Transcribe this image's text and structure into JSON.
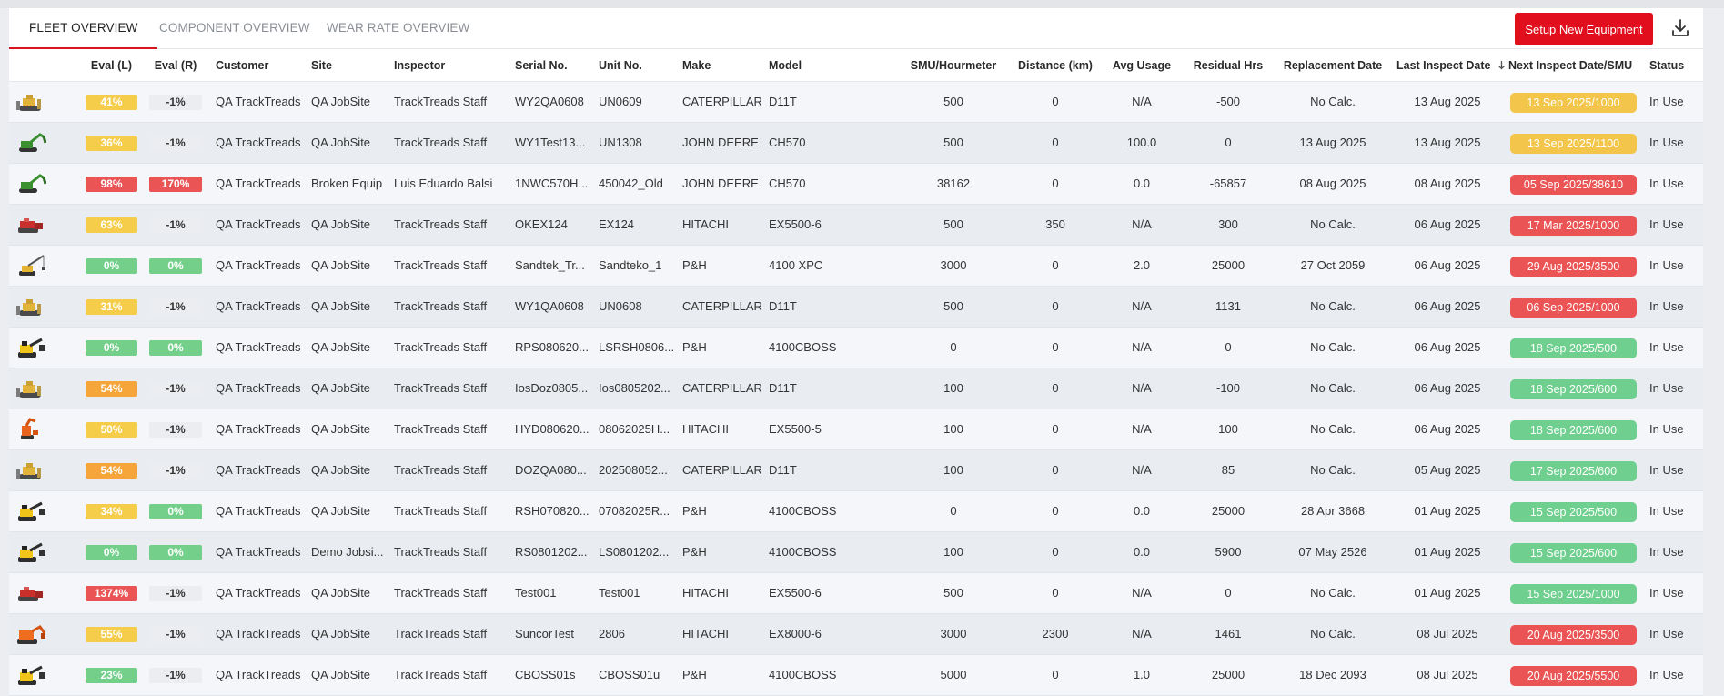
{
  "tabs": [
    {
      "label": "FLEET OVERVIEW"
    },
    {
      "label": "COMPONENT OVERVIEW"
    },
    {
      "label": "WEAR RATE OVERVIEW"
    }
  ],
  "setup_button": "Setup New Equipment",
  "columns": {
    "eval_l": "Eval (L)",
    "eval_r": "Eval (R)",
    "customer": "Customer",
    "site": "Site",
    "inspector": "Inspector",
    "serial": "Serial No.",
    "unit": "Unit No.",
    "make": "Make",
    "model": "Model",
    "smu": "SMU/Hourmeter",
    "distance": "Distance (km)",
    "avg": "Avg Usage",
    "residual": "Residual Hrs",
    "replacement": "Replacement Date",
    "last": "Last Inspect Date",
    "next": "Next Inspect Date/SMU",
    "status": "Status"
  },
  "colors": {
    "accent": "#e10f1d",
    "yellow": "#f5cd4a",
    "orange": "#f5a53a",
    "red": "#ea5455",
    "green": "#74cf8b"
  },
  "rows": [
    {
      "icon": "dozer-icon",
      "eval_l": "41%",
      "eval_l_color": "yellow",
      "eval_r": "-1%",
      "eval_r_color": "neutral",
      "customer": "QA TrackTreads",
      "site": "QA JobSite",
      "inspector": "TrackTreads Staff",
      "serial": "WY2QA0608",
      "unit": "UN0609",
      "make": "CATERPILLAR",
      "model": "D11T",
      "smu": "500",
      "distance": "0",
      "avg": "N/A",
      "residual": "-500",
      "replacement": "No Calc.",
      "last": "13 Aug 2025",
      "next": "13 Sep 2025/1000",
      "next_color": "yellow",
      "status": "In Use"
    },
    {
      "icon": "green-excavator-icon",
      "eval_l": "36%",
      "eval_l_color": "yellow",
      "eval_r": "-1%",
      "eval_r_color": "neutral",
      "customer": "QA TrackTreads",
      "site": "QA JobSite",
      "inspector": "TrackTreads Staff",
      "serial": "WY1Test13...",
      "unit": "UN1308",
      "make": "JOHN DEERE",
      "model": "CH570",
      "smu": "500",
      "distance": "0",
      "avg": "100.0",
      "residual": "0",
      "replacement": "13 Aug 2025",
      "last": "13 Aug 2025",
      "next": "13 Sep 2025/1100",
      "next_color": "yellow",
      "status": "In Use"
    },
    {
      "icon": "green-excavator-icon",
      "eval_l": "98%",
      "eval_l_color": "red",
      "eval_r": "170%",
      "eval_r_color": "red",
      "customer": "QA TrackTreads",
      "site": "Broken Equip",
      "inspector": "Luis Eduardo Balsi",
      "serial": "1NWC570H...",
      "unit": "450042_Old",
      "make": "JOHN DEERE",
      "model": "CH570",
      "smu": "38162",
      "distance": "0",
      "avg": "0.0",
      "residual": "-65857",
      "replacement": "08 Aug 2025",
      "last": "08 Aug 2025",
      "next": "05 Sep 2025/38610",
      "next_color": "red",
      "status": "In Use"
    },
    {
      "icon": "red-shovel-icon",
      "eval_l": "63%",
      "eval_l_color": "yellow",
      "eval_r": "-1%",
      "eval_r_color": "neutral",
      "customer": "QA TrackTreads",
      "site": "QA JobSite",
      "inspector": "TrackTreads Staff",
      "serial": "OKEX124",
      "unit": "EX124",
      "make": "HITACHI",
      "model": "EX5500-6",
      "smu": "500",
      "distance": "350",
      "avg": "N/A",
      "residual": "300",
      "replacement": "No Calc.",
      "last": "06 Aug 2025",
      "next": "17 Mar 2025/1000",
      "next_color": "red",
      "status": "In Use"
    },
    {
      "icon": "crane-icon",
      "eval_l": "0%",
      "eval_l_color": "green",
      "eval_r": "0%",
      "eval_r_color": "green",
      "customer": "QA TrackTreads",
      "site": "QA JobSite",
      "inspector": "TrackTreads Staff",
      "serial": "Sandtek_Tr...",
      "unit": "Sandteko_1",
      "make": "P&H",
      "model": "4100 XPC",
      "smu": "3000",
      "distance": "0",
      "avg": "2.0",
      "residual": "25000",
      "replacement": "27 Oct 2059",
      "last": "06 Aug 2025",
      "next": "29 Aug 2025/3500",
      "next_color": "red",
      "status": "In Use"
    },
    {
      "icon": "dozer-icon",
      "eval_l": "31%",
      "eval_l_color": "yellow",
      "eval_r": "-1%",
      "eval_r_color": "neutral",
      "customer": "QA TrackTreads",
      "site": "QA JobSite",
      "inspector": "TrackTreads Staff",
      "serial": "WY1QA0608",
      "unit": "UN0608",
      "make": "CATERPILLAR",
      "model": "D11T",
      "smu": "500",
      "distance": "0",
      "avg": "N/A",
      "residual": "1131",
      "replacement": "No Calc.",
      "last": "06 Aug 2025",
      "next": "06 Sep 2025/1000",
      "next_color": "red",
      "status": "In Use"
    },
    {
      "icon": "rope-shovel-icon",
      "eval_l": "0%",
      "eval_l_color": "green",
      "eval_r": "0%",
      "eval_r_color": "green",
      "customer": "QA TrackTreads",
      "site": "QA JobSite",
      "inspector": "TrackTreads Staff",
      "serial": "RPS080620...",
      "unit": "LSRSH0806...",
      "make": "P&H",
      "model": "4100CBOSS",
      "smu": "0",
      "distance": "0",
      "avg": "N/A",
      "residual": "0",
      "replacement": "No Calc.",
      "last": "06 Aug 2025",
      "next": "18 Sep 2025/500",
      "next_color": "green",
      "status": "In Use"
    },
    {
      "icon": "dozer-icon",
      "eval_l": "54%",
      "eval_l_color": "orange",
      "eval_r": "-1%",
      "eval_r_color": "neutral",
      "customer": "QA TrackTreads",
      "site": "QA JobSite",
      "inspector": "TrackTreads Staff",
      "serial": "IosDoz0805...",
      "unit": "Ios0805202...",
      "make": "CATERPILLAR",
      "model": "D11T",
      "smu": "100",
      "distance": "0",
      "avg": "N/A",
      "residual": "-100",
      "replacement": "No Calc.",
      "last": "06 Aug 2025",
      "next": "18 Sep 2025/600",
      "next_color": "green",
      "status": "In Use"
    },
    {
      "icon": "orange-excavator-icon",
      "eval_l": "50%",
      "eval_l_color": "yellow",
      "eval_r": "-1%",
      "eval_r_color": "neutral",
      "customer": "QA TrackTreads",
      "site": "QA JobSite",
      "inspector": "TrackTreads Staff",
      "serial": "HYD080620...",
      "unit": "08062025H...",
      "make": "HITACHI",
      "model": "EX5500-5",
      "smu": "100",
      "distance": "0",
      "avg": "N/A",
      "residual": "100",
      "replacement": "No Calc.",
      "last": "06 Aug 2025",
      "next": "18 Sep 2025/600",
      "next_color": "green",
      "status": "In Use"
    },
    {
      "icon": "dozer-icon",
      "eval_l": "54%",
      "eval_l_color": "orange",
      "eval_r": "-1%",
      "eval_r_color": "neutral",
      "customer": "QA TrackTreads",
      "site": "QA JobSite",
      "inspector": "TrackTreads Staff",
      "serial": "DOZQA080...",
      "unit": "202508052...",
      "make": "CATERPILLAR",
      "model": "D11T",
      "smu": "100",
      "distance": "0",
      "avg": "N/A",
      "residual": "85",
      "replacement": "No Calc.",
      "last": "05 Aug 2025",
      "next": "17 Sep 2025/600",
      "next_color": "green",
      "status": "In Use"
    },
    {
      "icon": "rope-shovel-icon",
      "eval_l": "34%",
      "eval_l_color": "yellow",
      "eval_r": "0%",
      "eval_r_color": "green",
      "customer": "QA TrackTreads",
      "site": "QA JobSite",
      "inspector": "TrackTreads Staff",
      "serial": "RSH070820...",
      "unit": "07082025R...",
      "make": "P&H",
      "model": "4100CBOSS",
      "smu": "0",
      "distance": "0",
      "avg": "0.0",
      "residual": "25000",
      "replacement": "28 Apr 3668",
      "last": "01 Aug 2025",
      "next": "15 Sep 2025/500",
      "next_color": "green",
      "status": "In Use"
    },
    {
      "icon": "rope-shovel-icon",
      "eval_l": "0%",
      "eval_l_color": "green",
      "eval_r": "0%",
      "eval_r_color": "green",
      "customer": "QA TrackTreads",
      "site": "Demo Jobsi...",
      "inspector": "TrackTreads Staff",
      "serial": "RS0801202...",
      "unit": "LS0801202...",
      "make": "P&H",
      "model": "4100CBOSS",
      "smu": "100",
      "distance": "0",
      "avg": "0.0",
      "residual": "5900",
      "replacement": "07 May 2526",
      "last": "01 Aug 2025",
      "next": "15 Sep 2025/600",
      "next_color": "green",
      "status": "In Use"
    },
    {
      "icon": "red-shovel-icon",
      "eval_l": "1374%",
      "eval_l_color": "red",
      "eval_r": "-1%",
      "eval_r_color": "neutral",
      "customer": "QA TrackTreads",
      "site": "QA JobSite",
      "inspector": "TrackTreads Staff",
      "serial": "Test001",
      "unit": "Test001",
      "make": "HITACHI",
      "model": "EX5500-6",
      "smu": "500",
      "distance": "0",
      "avg": "N/A",
      "residual": "0",
      "replacement": "No Calc.",
      "last": "01 Aug 2025",
      "next": "15 Sep 2025/1000",
      "next_color": "green",
      "status": "In Use"
    },
    {
      "icon": "orange-mining-excavator-icon",
      "eval_l": "55%",
      "eval_l_color": "yellow",
      "eval_r": "-1%",
      "eval_r_color": "neutral",
      "customer": "QA TrackTreads",
      "site": "QA JobSite",
      "inspector": "TrackTreads Staff",
      "serial": "SuncorTest",
      "unit": "2806",
      "make": "HITACHI",
      "model": "EX8000-6",
      "smu": "3000",
      "distance": "2300",
      "avg": "N/A",
      "residual": "1461",
      "replacement": "No Calc.",
      "last": "08 Jul 2025",
      "next": "20 Aug 2025/3500",
      "next_color": "red",
      "status": "In Use"
    },
    {
      "icon": "rope-shovel-icon",
      "eval_l": "23%",
      "eval_l_color": "green",
      "eval_r": "-1%",
      "eval_r_color": "neutral",
      "customer": "QA TrackTreads",
      "site": "QA JobSite",
      "inspector": "TrackTreads Staff",
      "serial": "CBOSS01s",
      "unit": "CBOSS01u",
      "make": "P&H",
      "model": "4100CBOSS",
      "smu": "5000",
      "distance": "0",
      "avg": "1.0",
      "residual": "25000",
      "replacement": "18 Dec 2093",
      "last": "08 Jul 2025",
      "next": "20 Aug 2025/5500",
      "next_color": "red",
      "status": "In Use"
    }
  ]
}
